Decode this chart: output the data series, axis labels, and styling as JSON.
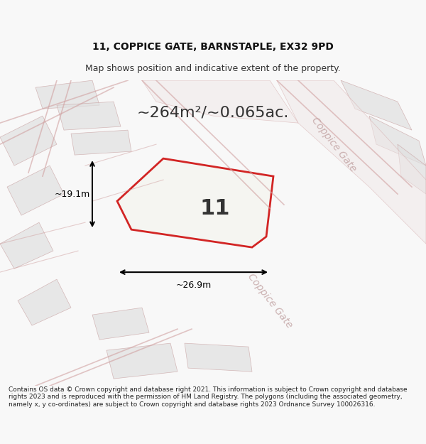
{
  "title_line1": "11, COPPICE GATE, BARNSTAPLE, EX32 9PD",
  "title_line2": "Map shows position and indicative extent of the property.",
  "area_text": "~264m²/~0.065ac.",
  "property_number": "11",
  "dim_width": "~26.9m",
  "dim_height": "~19.1m",
  "street_label1": "Coppice Gate",
  "street_label2": "Coppice Gate",
  "footer_text": "Contains OS data © Crown copyright and database right 2021. This information is subject to Crown copyright and database rights 2023 and is reproduced with the permission of HM Land Registry. The polygons (including the associated geometry, namely x, y co-ordinates) are subject to Crown copyright and database rights 2023 Ordnance Survey 100026316.",
  "bg_color": "#f0f0f0",
  "map_bg_color": "#f5f5f5",
  "property_fill": "#f0f0f0",
  "property_edge": "#cc0000",
  "road_color": "#e8c8c8",
  "dim_line_color": "#000000",
  "title_fontsize": 10,
  "subtitle_fontsize": 9,
  "area_fontsize": 16,
  "property_num_fontsize": 22,
  "dim_fontsize": 9,
  "street_fontsize": 10,
  "footer_fontsize": 6.5
}
